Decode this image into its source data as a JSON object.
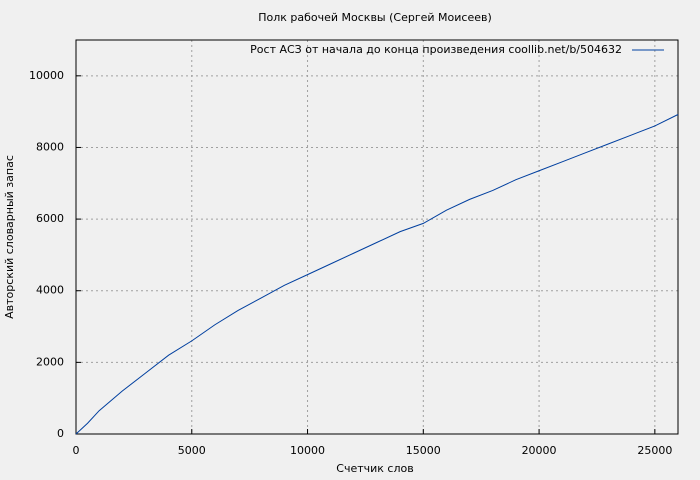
{
  "chart_data": {
    "type": "line",
    "title": "Полк рабочей Москвы (Сергей Моисеев)",
    "xlabel": "Счетчик слов",
    "ylabel": "Авторский словарный запас",
    "x": [
      0,
      500,
      1000,
      2000,
      3000,
      4000,
      5000,
      6000,
      7000,
      8000,
      9000,
      10000,
      11000,
      12000,
      13000,
      14000,
      15000,
      16000,
      17000,
      18000,
      19000,
      20000,
      21000,
      22000,
      23000,
      24000,
      25000,
      26000
    ],
    "series": [
      {
        "name": "Рост АСЗ от начала до конца произведения coollib.net/b/504632",
        "color": "#003f9f",
        "values": [
          0,
          300,
          650,
          1200,
          1700,
          2200,
          2600,
          3050,
          3450,
          3800,
          4150,
          4450,
          4750,
          5050,
          5350,
          5650,
          5880,
          6250,
          6550,
          6800,
          7100,
          7350,
          7600,
          7850,
          8100,
          8350,
          8600,
          8920
        ]
      }
    ],
    "xlim": [
      0,
      26000
    ],
    "xticks": [
      0,
      5000,
      10000,
      15000,
      20000,
      25000
    ],
    "ylim": [
      0,
      11000
    ],
    "yticks": [
      0,
      2000,
      4000,
      6000,
      8000,
      10000
    ],
    "grid": true,
    "legend": "top-right"
  }
}
